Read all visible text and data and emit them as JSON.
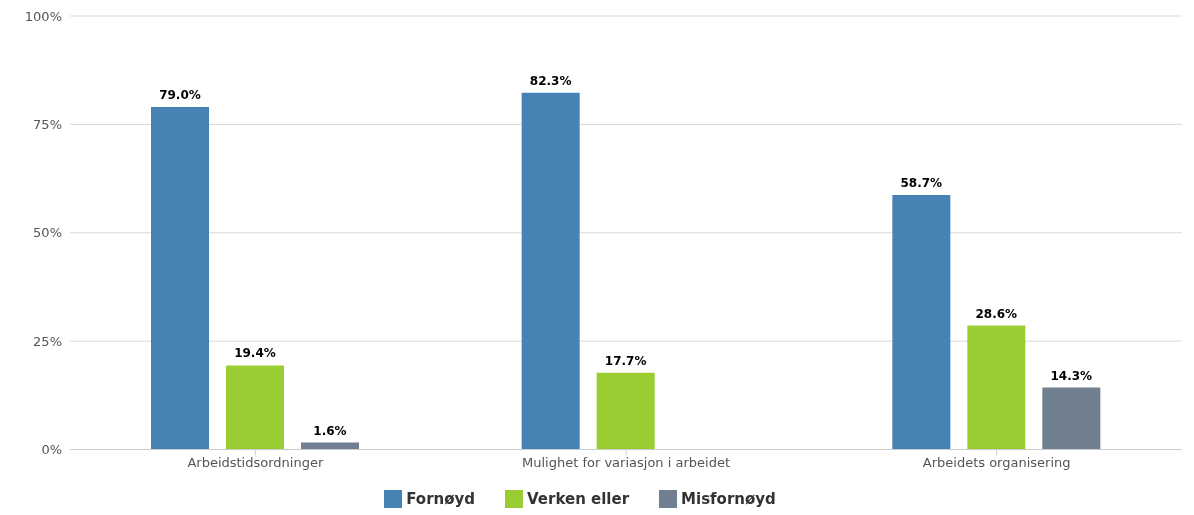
{
  "chart_data": {
    "type": "bar",
    "categories": [
      "Arbeidstidsordninger",
      "Mulighet for variasjon i arbeidet",
      "Arbeidets organisering"
    ],
    "series": [
      {
        "name": "Fornøyd",
        "color": "#4682b4",
        "values": [
          79.0,
          82.3,
          58.7
        ],
        "value_labels": [
          "79.0%",
          "82.3%",
          "58.7%"
        ]
      },
      {
        "name": "Verken eller",
        "color": "#9acd32",
        "values": [
          19.4,
          17.7,
          28.6
        ],
        "value_labels": [
          "19.4%",
          "17.7%",
          "28.6%"
        ]
      },
      {
        "name": "Misfornøyd",
        "color": "#708090",
        "values": [
          1.6,
          null,
          14.3
        ],
        "value_labels": [
          "1.6%",
          null,
          "14.3%"
        ]
      }
    ],
    "ylim": [
      0,
      100
    ],
    "yticks": [
      {
        "value": 0,
        "label": "0%"
      },
      {
        "value": 25,
        "label": "25%"
      },
      {
        "value": 50,
        "label": "50%"
      },
      {
        "value": 75,
        "label": "75%"
      },
      {
        "value": 100,
        "label": "100%"
      }
    ],
    "grid": "y",
    "legend": "bottom"
  }
}
